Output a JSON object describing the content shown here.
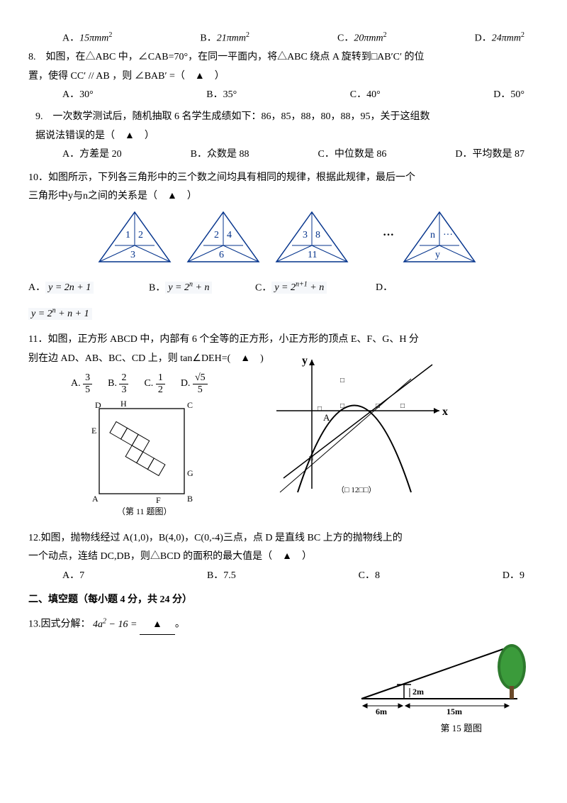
{
  "q7opts": {
    "a_label": "A．",
    "a_val": "15πmm",
    "b_label": "B．",
    "b_val": "21πmm",
    "c_label": "C．",
    "c_val": "20πmm",
    "d_label": "D．",
    "d_val": "24πmm",
    "exp": "2"
  },
  "q8": {
    "text": "8.　如图，在△ABC 中，∠CAB=70°，在同一平面内，将△ABC 绕点 A 旋转到□AB′C′ 的位",
    "text2": "置，使得 CC′ // AB ，则 ∠BAB′ =（　▲　）",
    "a": "A．30°",
    "b": "B．35°",
    "c": "C．40°",
    "d": "D．50°"
  },
  "q9": {
    "text": "9.　一次数学测试后，随机抽取 6 名学生成绩如下：86，85，88，80，88，95，关于这组数",
    "text2": "据说法错误的是（　▲　）",
    "a": "A．方差是 20",
    "b": "B．众数是 88",
    "c": "C．中位数是 86",
    "d": "D．平均数是 87"
  },
  "q10": {
    "text": "10．如图所示，下列各三角形中的三个数之间均具有相同的规律，根据此规律，最后一个",
    "text2": "三角形中y与n之间的关系是（　▲　）",
    "a_label": "A．",
    "a_eq": "y = 2n + 1",
    "b_label": "B．",
    "b_eq": "y = 2",
    "b_exp": "n",
    "b_tail": " + n",
    "c_label": "C．",
    "c_eq": "y = 2",
    "c_exp": "n+1",
    "c_tail": " + n",
    "d_label": "D．",
    "d_eq": "y = 2",
    "d_exp": "n",
    "d_tail": " + n + 1",
    "tri": [
      {
        "l": "1",
        "r": "2",
        "b": "3"
      },
      {
        "l": "2",
        "r": "4",
        "b": "6"
      },
      {
        "l": "3",
        "r": "8",
        "b": "11"
      },
      {
        "l": "n",
        "r": "···",
        "b": "y"
      }
    ],
    "dots": "···"
  },
  "q11": {
    "text": "11．如图，正方形 ABCD 中，内部有 6 个全等的正方形，小正方形的顶点 E、F、G、H 分",
    "text2": "别在边 AD、AB、BC、CD 上，则 tan∠DEH=(　▲　)",
    "opts": {
      "a": "A.",
      "b": "B.",
      "c": "C.",
      "d": "D."
    },
    "fracs": {
      "an": "3",
      "ad": "5",
      "bn": "2",
      "bd": "3",
      "cn": "1",
      "cd": "2",
      "dn": "√5",
      "dd": "5"
    },
    "caption": "（第 11 题图）",
    "caption2": "（□ 12□□）",
    "axis_x": "x",
    "axis_y": "y",
    "ptA": "A",
    "square": {
      "D": "D",
      "C": "C",
      "E": "E",
      "H": "H",
      "G": "G",
      "A": "A",
      "F": "F",
      "B": "B"
    }
  },
  "q12": {
    "text": "12.如图，抛物线经过 A(1,0)，B(4,0)，C(0,-4)三点，点 D 是直线 BC 上方的抛物线上的",
    "text2": "一个动点，连结 DC,DB，则△BCD 的面积的最大值是（　▲　）",
    "a": "A．7",
    "b": "B．7.5",
    "c": "C．8",
    "d": "D．9"
  },
  "section2": "二、填空题（每小题 4 分，共 24 分）",
  "q13": {
    "text": "13.因式分解：",
    "eq": "4a",
    "exp": "2",
    "tail": " − 16 =",
    "blank": "▲",
    "end": "。"
  },
  "q15fig": {
    "a": "6m",
    "b": "2m",
    "c": "15m",
    "caption": "第 15 题图"
  }
}
